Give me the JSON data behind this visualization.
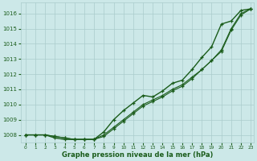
{
  "xlabel": "Graphe pression niveau de la mer (hPa)",
  "xlim_min": -0.5,
  "xlim_max": 23.3,
  "ylim_min": 1007.5,
  "ylim_max": 1016.7,
  "yticks": [
    1008,
    1009,
    1010,
    1011,
    1012,
    1013,
    1014,
    1015,
    1016
  ],
  "xticks": [
    0,
    1,
    2,
    3,
    4,
    5,
    6,
    7,
    8,
    9,
    10,
    11,
    12,
    13,
    14,
    15,
    16,
    17,
    18,
    19,
    20,
    21,
    22,
    23
  ],
  "bg_color": "#cce8e8",
  "grid_color": "#aacccc",
  "line_color": "#1a5c1a",
  "series": [
    [
      1008.0,
      1008.0,
      1008.0,
      1007.8,
      1007.7,
      1007.7,
      1007.7,
      1007.7,
      1008.2,
      1009.0,
      1009.6,
      1010.1,
      1010.6,
      1010.5,
      1010.9,
      1011.4,
      1011.6,
      1012.3,
      1013.1,
      1013.8,
      1015.3,
      1015.5,
      1016.2,
      1016.3
    ],
    [
      1008.0,
      1008.0,
      1008.0,
      1007.9,
      1007.8,
      1007.7,
      1007.7,
      1007.7,
      1008.0,
      1008.5,
      1009.0,
      1009.5,
      1010.0,
      1010.3,
      1010.6,
      1011.0,
      1011.3,
      1011.8,
      1012.3,
      1012.9,
      1013.6,
      1015.0,
      1016.0,
      1016.3
    ],
    [
      1008.0,
      1008.0,
      1008.0,
      1007.9,
      1007.8,
      1007.7,
      1007.7,
      1007.7,
      1007.9,
      1008.4,
      1008.9,
      1009.4,
      1009.9,
      1010.2,
      1010.5,
      1010.9,
      1011.2,
      1011.7,
      1012.3,
      1012.9,
      1013.5,
      1014.9,
      1015.9,
      1016.3
    ]
  ]
}
